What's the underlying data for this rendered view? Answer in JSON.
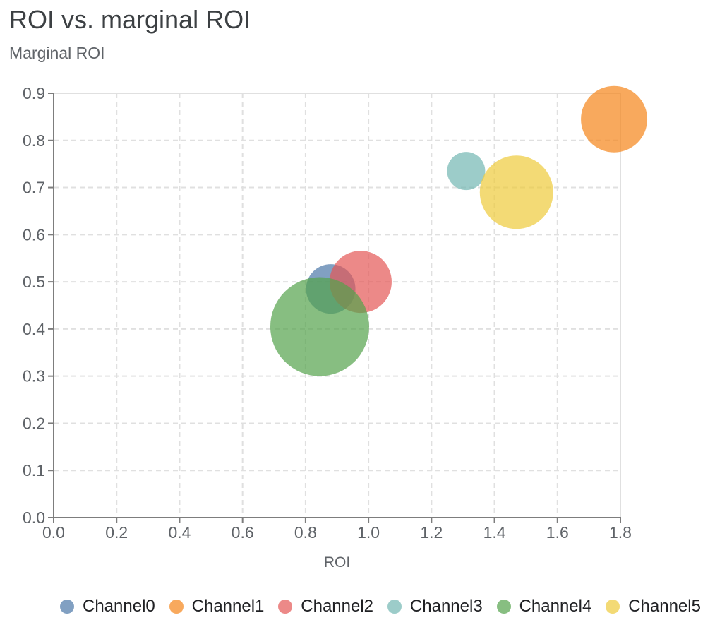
{
  "chart_data": {
    "type": "scatter",
    "subtype": "bubble",
    "title": "ROI vs. marginal ROI",
    "xlabel": "ROI",
    "ylabel": "Marginal ROI",
    "xlim": [
      0,
      1.8
    ],
    "ylim": [
      0,
      0.9
    ],
    "x_ticks": [
      0,
      0.2,
      0.4,
      0.6,
      0.8,
      1.0,
      1.2,
      1.4,
      1.6,
      1.8
    ],
    "x_tick_labels": [
      "0.0",
      "0.2",
      "0.4",
      "0.6",
      "0.8",
      "1.0",
      "1.2",
      "1.4",
      "1.6",
      "1.8"
    ],
    "y_ticks": [
      0,
      0.1,
      0.2,
      0.3,
      0.4,
      0.5,
      0.6,
      0.7,
      0.8,
      0.9
    ],
    "y_tick_labels": [
      "0.0",
      "0.1",
      "0.2",
      "0.3",
      "0.4",
      "0.5",
      "0.6",
      "0.7",
      "0.8",
      "0.9"
    ],
    "grid": "dashed",
    "legend_position": "bottom",
    "marker_opacity": 0.7,
    "series": [
      {
        "name": "Channel0",
        "color": "#4C78A8",
        "roi": 0.88,
        "marginal_roi": 0.485,
        "radius_px": 35
      },
      {
        "name": "Channel1",
        "color": "#F58518",
        "roi": 1.78,
        "marginal_roi": 0.845,
        "radius_px": 47
      },
      {
        "name": "Channel2",
        "color": "#E45756",
        "roi": 0.975,
        "marginal_roi": 0.5,
        "radius_px": 44
      },
      {
        "name": "Channel3",
        "color": "#72B7B2",
        "roi": 1.31,
        "marginal_roi": 0.735,
        "radius_px": 27
      },
      {
        "name": "Channel4",
        "color": "#54A24B",
        "roi": 0.845,
        "marginal_roi": 0.405,
        "radius_px": 70
      },
      {
        "name": "Channel5",
        "color": "#EECA3B",
        "roi": 1.47,
        "marginal_roi": 0.69,
        "radius_px": 52
      }
    ]
  },
  "style_colors": {
    "title_text": "#3C4043",
    "axis_text": "#5F6368",
    "axis_line": "#7D7D7D",
    "gridline": "#E0E0E0",
    "legend_text": "#202124",
    "background": "#FFFFFF"
  }
}
